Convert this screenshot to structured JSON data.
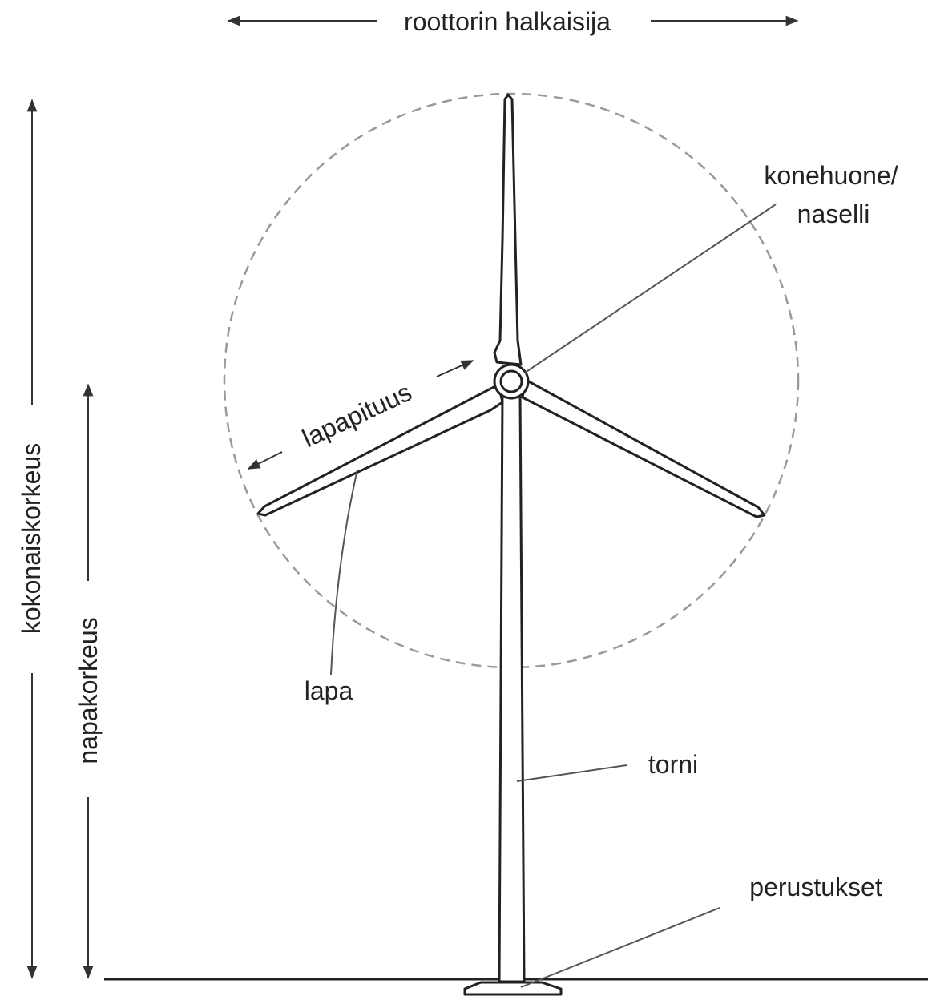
{
  "dimensions": {
    "rotor_diameter": "roottorin halkaisija",
    "total_height": "kokonaiskorkeus",
    "hub_height": "napakorkeus",
    "blade_length": "lapapituus"
  },
  "parts": {
    "nacelle": [
      "konehuone/",
      "naselli"
    ],
    "blade": "lapa",
    "tower": "torni",
    "foundation": "perustukset"
  }
}
